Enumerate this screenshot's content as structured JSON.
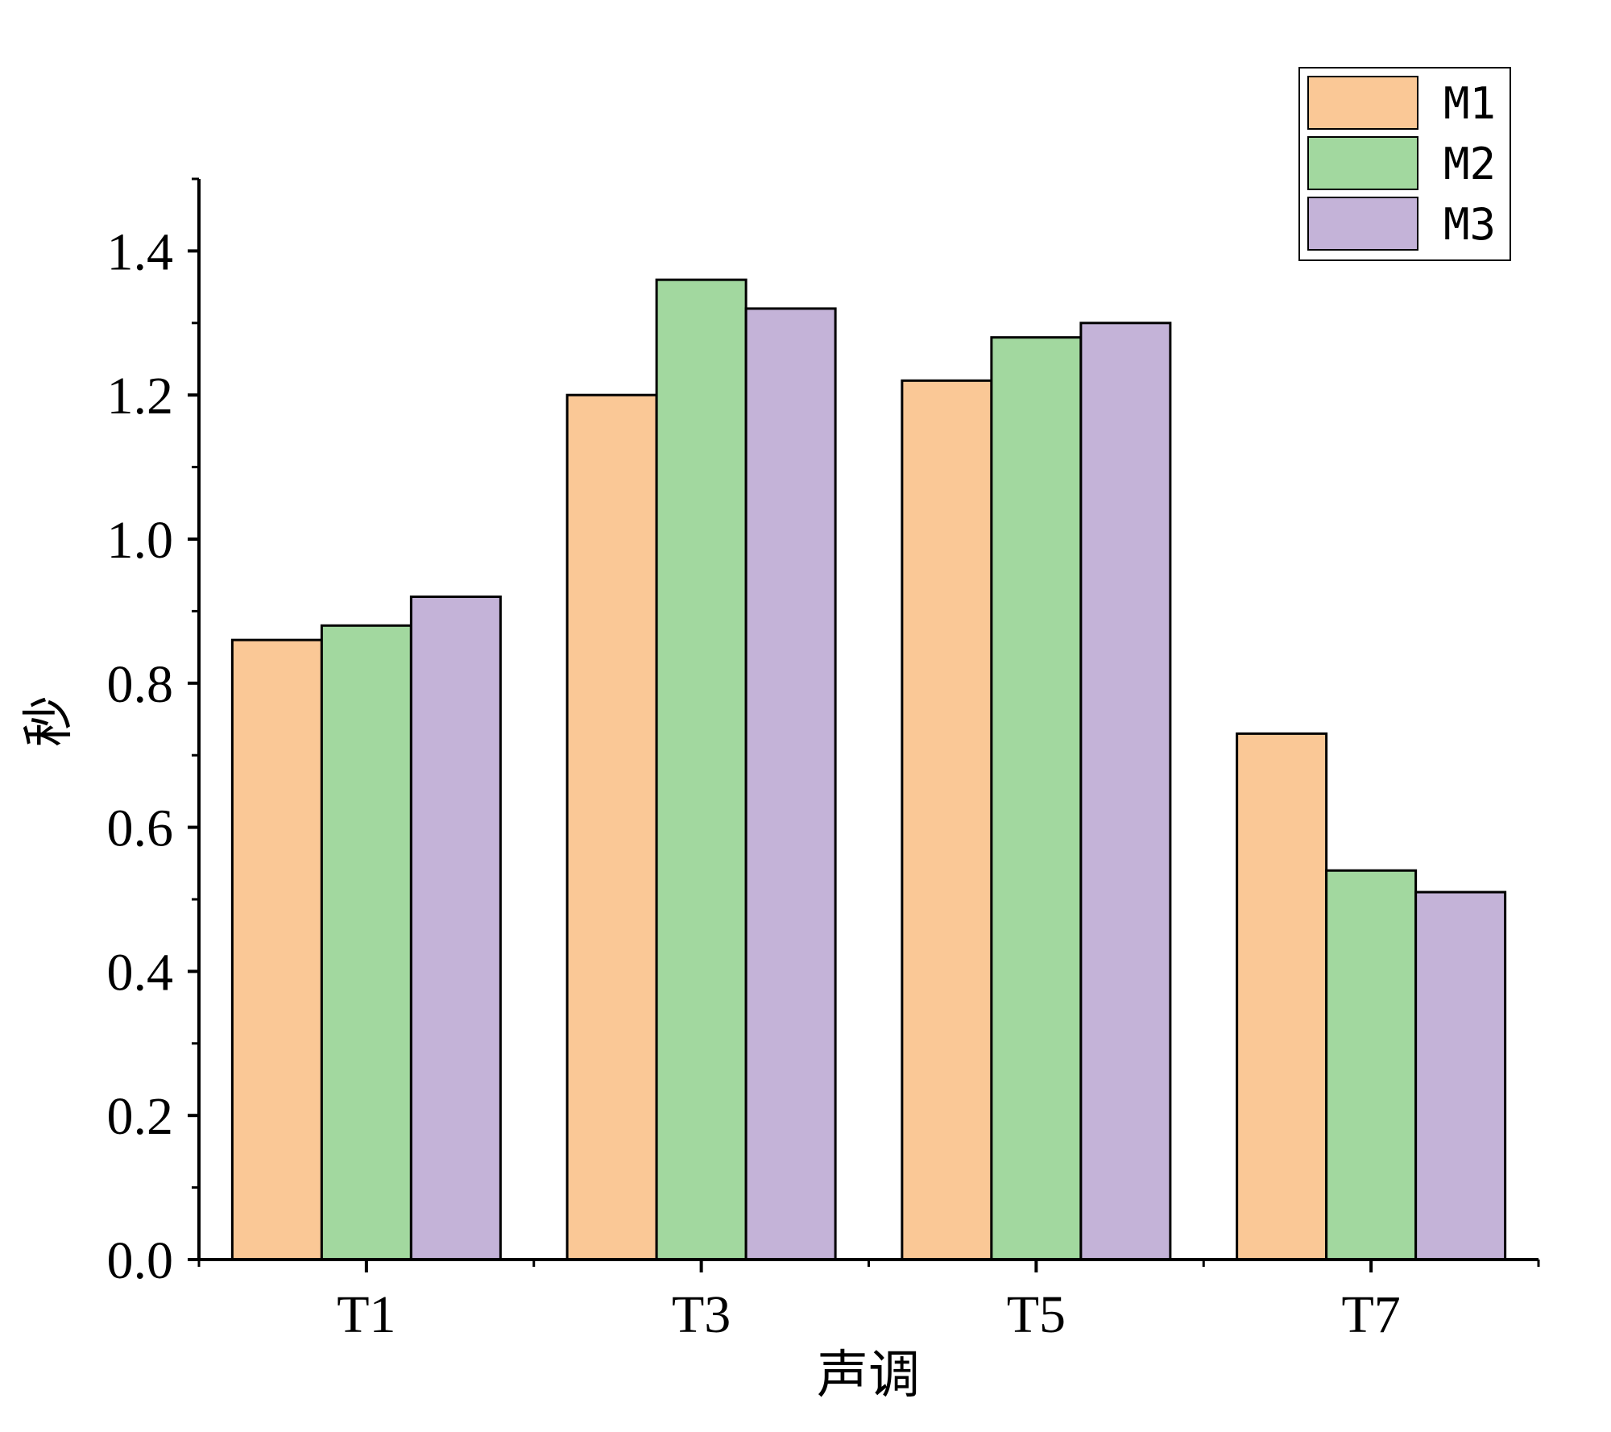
{
  "chart_data": {
    "type": "bar",
    "title": "",
    "xlabel": "声调",
    "ylabel": "秒",
    "categories": [
      "T1",
      "T3",
      "T5",
      "T7"
    ],
    "series": [
      {
        "name": "M1",
        "color": "#FAC896",
        "values": [
          0.86,
          1.2,
          1.22,
          0.73
        ]
      },
      {
        "name": "M2",
        "color": "#A2D89F",
        "values": [
          0.88,
          1.36,
          1.28,
          0.54
        ]
      },
      {
        "name": "M3",
        "color": "#C4B3D8",
        "values": [
          0.92,
          1.32,
          1.3,
          0.51
        ]
      }
    ],
    "ylim": [
      0,
      1.5
    ],
    "yticks": [
      "0.0",
      "0.2",
      "0.4",
      "0.6",
      "0.8",
      "1.0",
      "1.2",
      "1.4"
    ],
    "legend_position": "top-right",
    "grid": false
  }
}
